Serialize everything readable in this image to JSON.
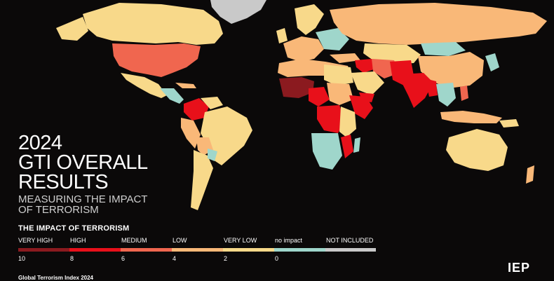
{
  "title": {
    "line1": "2024",
    "line2": "GTI OVERALL",
    "line3": "RESULTS",
    "sub1": "MEASURING THE IMPACT",
    "sub2": "OF TERRORISM"
  },
  "legend": {
    "heading": "THE IMPACT OF TERRORISM",
    "categories": [
      {
        "label": "VERY HIGH",
        "color": "#8b1a1f"
      },
      {
        "label": "HIGH",
        "color": "#e8101a"
      },
      {
        "label": "MEDIUM",
        "color": "#f0664f"
      },
      {
        "label": "LOW",
        "color": "#f9b878"
      },
      {
        "label": "VERY LOW",
        "color": "#f8d98a"
      },
      {
        "label": "no impact",
        "color": "#9fd6cb"
      },
      {
        "label": "NOT INCLUDED",
        "color": "#c9c9c9"
      }
    ],
    "ticks": [
      "10",
      "8",
      "6",
      "4",
      "2",
      "0"
    ]
  },
  "footer": "Global Terrorism Index 2024",
  "logo": "IEP",
  "map_colors": {
    "very_high": "#8b1a1f",
    "high": "#e8101a",
    "medium": "#f0664f",
    "low": "#f9b878",
    "very_low": "#f8d98a",
    "no_impact": "#9fd6cb",
    "not_included": "#c9c9c9"
  }
}
